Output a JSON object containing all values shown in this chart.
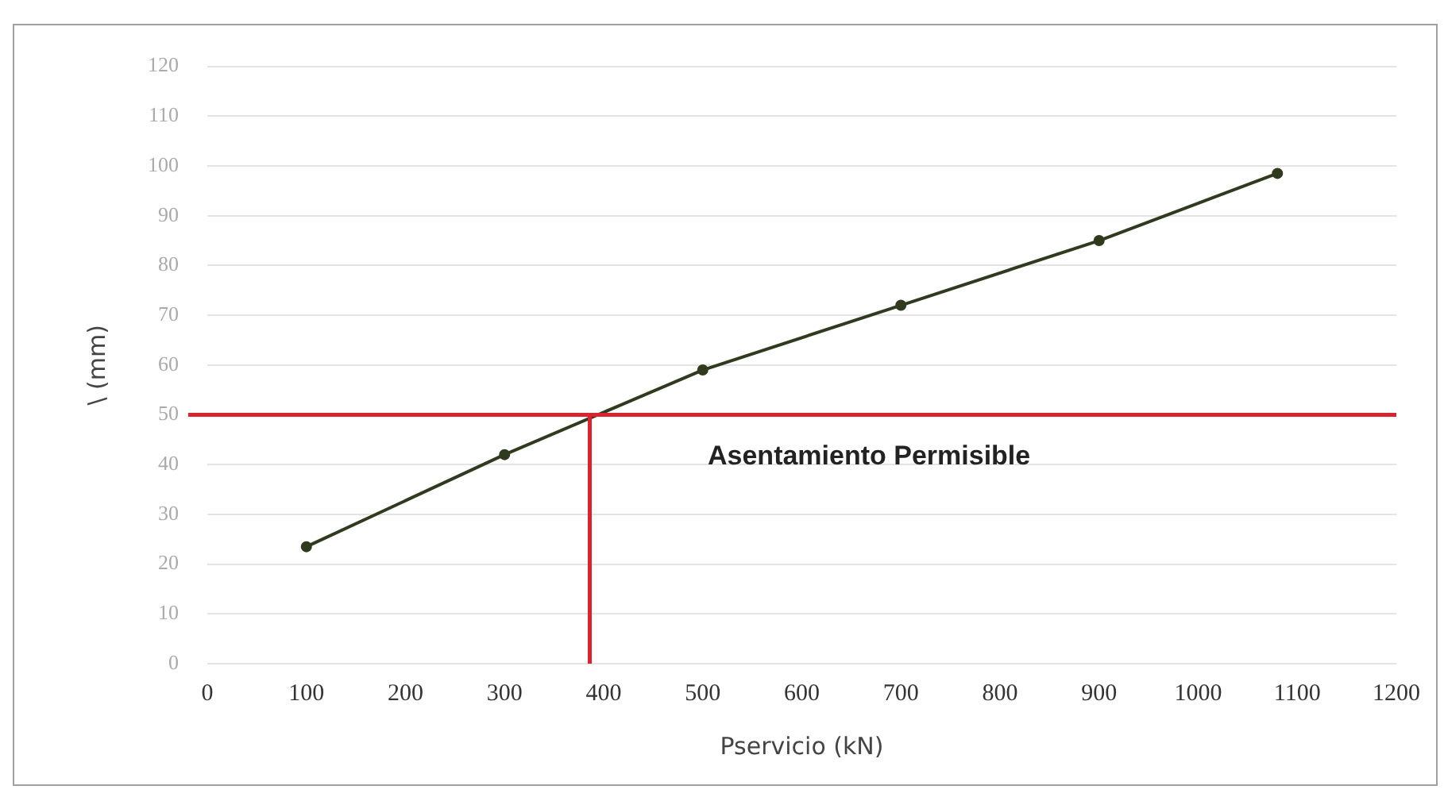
{
  "chart_data": {
    "type": "line",
    "xlabel": "Pservicio (kN)",
    "ylabel": "\\ (mm)",
    "x": [
      100,
      300,
      500,
      700,
      900,
      1080
    ],
    "series": [
      {
        "color": "#2f3a1f",
        "values": [
          23.5,
          42,
          59,
          72,
          85,
          98.5
        ]
      }
    ],
    "xlim": [
      0,
      1200
    ],
    "xticks": [
      0,
      100,
      200,
      300,
      400,
      500,
      600,
      700,
      800,
      900,
      1000,
      1100,
      1200
    ],
    "ylim": [
      0,
      120
    ],
    "yticks": [
      0,
      10,
      20,
      30,
      40,
      50,
      60,
      70,
      80,
      90,
      100,
      110,
      120
    ],
    "ref_lines": [
      {
        "axis": "y",
        "value": 50,
        "label": "Asentamiento Permisible",
        "color": "#d9232e"
      },
      {
        "axis": "x",
        "value": 386,
        "color": "#d9232e"
      }
    ],
    "grid": "y",
    "marker": "circle",
    "line_style": "solid",
    "legend": false
  }
}
